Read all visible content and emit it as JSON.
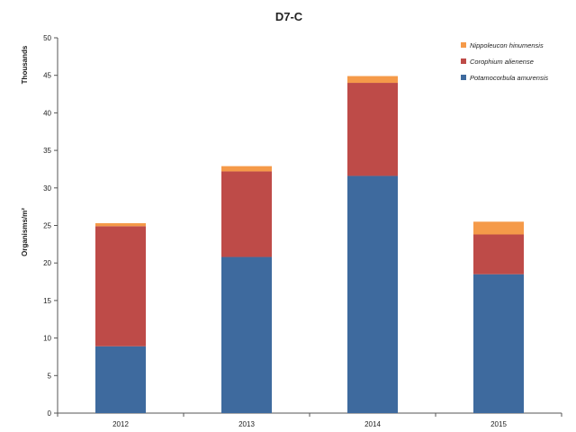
{
  "chart_data": {
    "type": "bar",
    "stacked": true,
    "title": "D7-C",
    "xlabel": "",
    "ylabel": "Organisms/m²",
    "units_label": "Thousands",
    "ylim": [
      0,
      50
    ],
    "yticks": [
      0,
      5,
      10,
      15,
      20,
      25,
      30,
      35,
      40,
      45,
      50
    ],
    "categories": [
      "2012",
      "2013",
      "2014",
      "2015"
    ],
    "series": [
      {
        "name": "Potamocorbula  amurensis",
        "color": "#3E6A9E",
        "values": [
          8.9,
          20.8,
          31.6,
          18.5
        ]
      },
      {
        "name": "Corophium  alienense",
        "color": "#BE4B48",
        "values": [
          16.0,
          11.4,
          12.4,
          5.3
        ]
      },
      {
        "name": "Nippoleucon  hinumensis",
        "color": "#F59A49",
        "values": [
          0.4,
          0.7,
          0.9,
          1.7
        ]
      }
    ],
    "legend_position": "top-right",
    "legend_order": [
      2,
      1,
      0
    ],
    "grid": false
  }
}
